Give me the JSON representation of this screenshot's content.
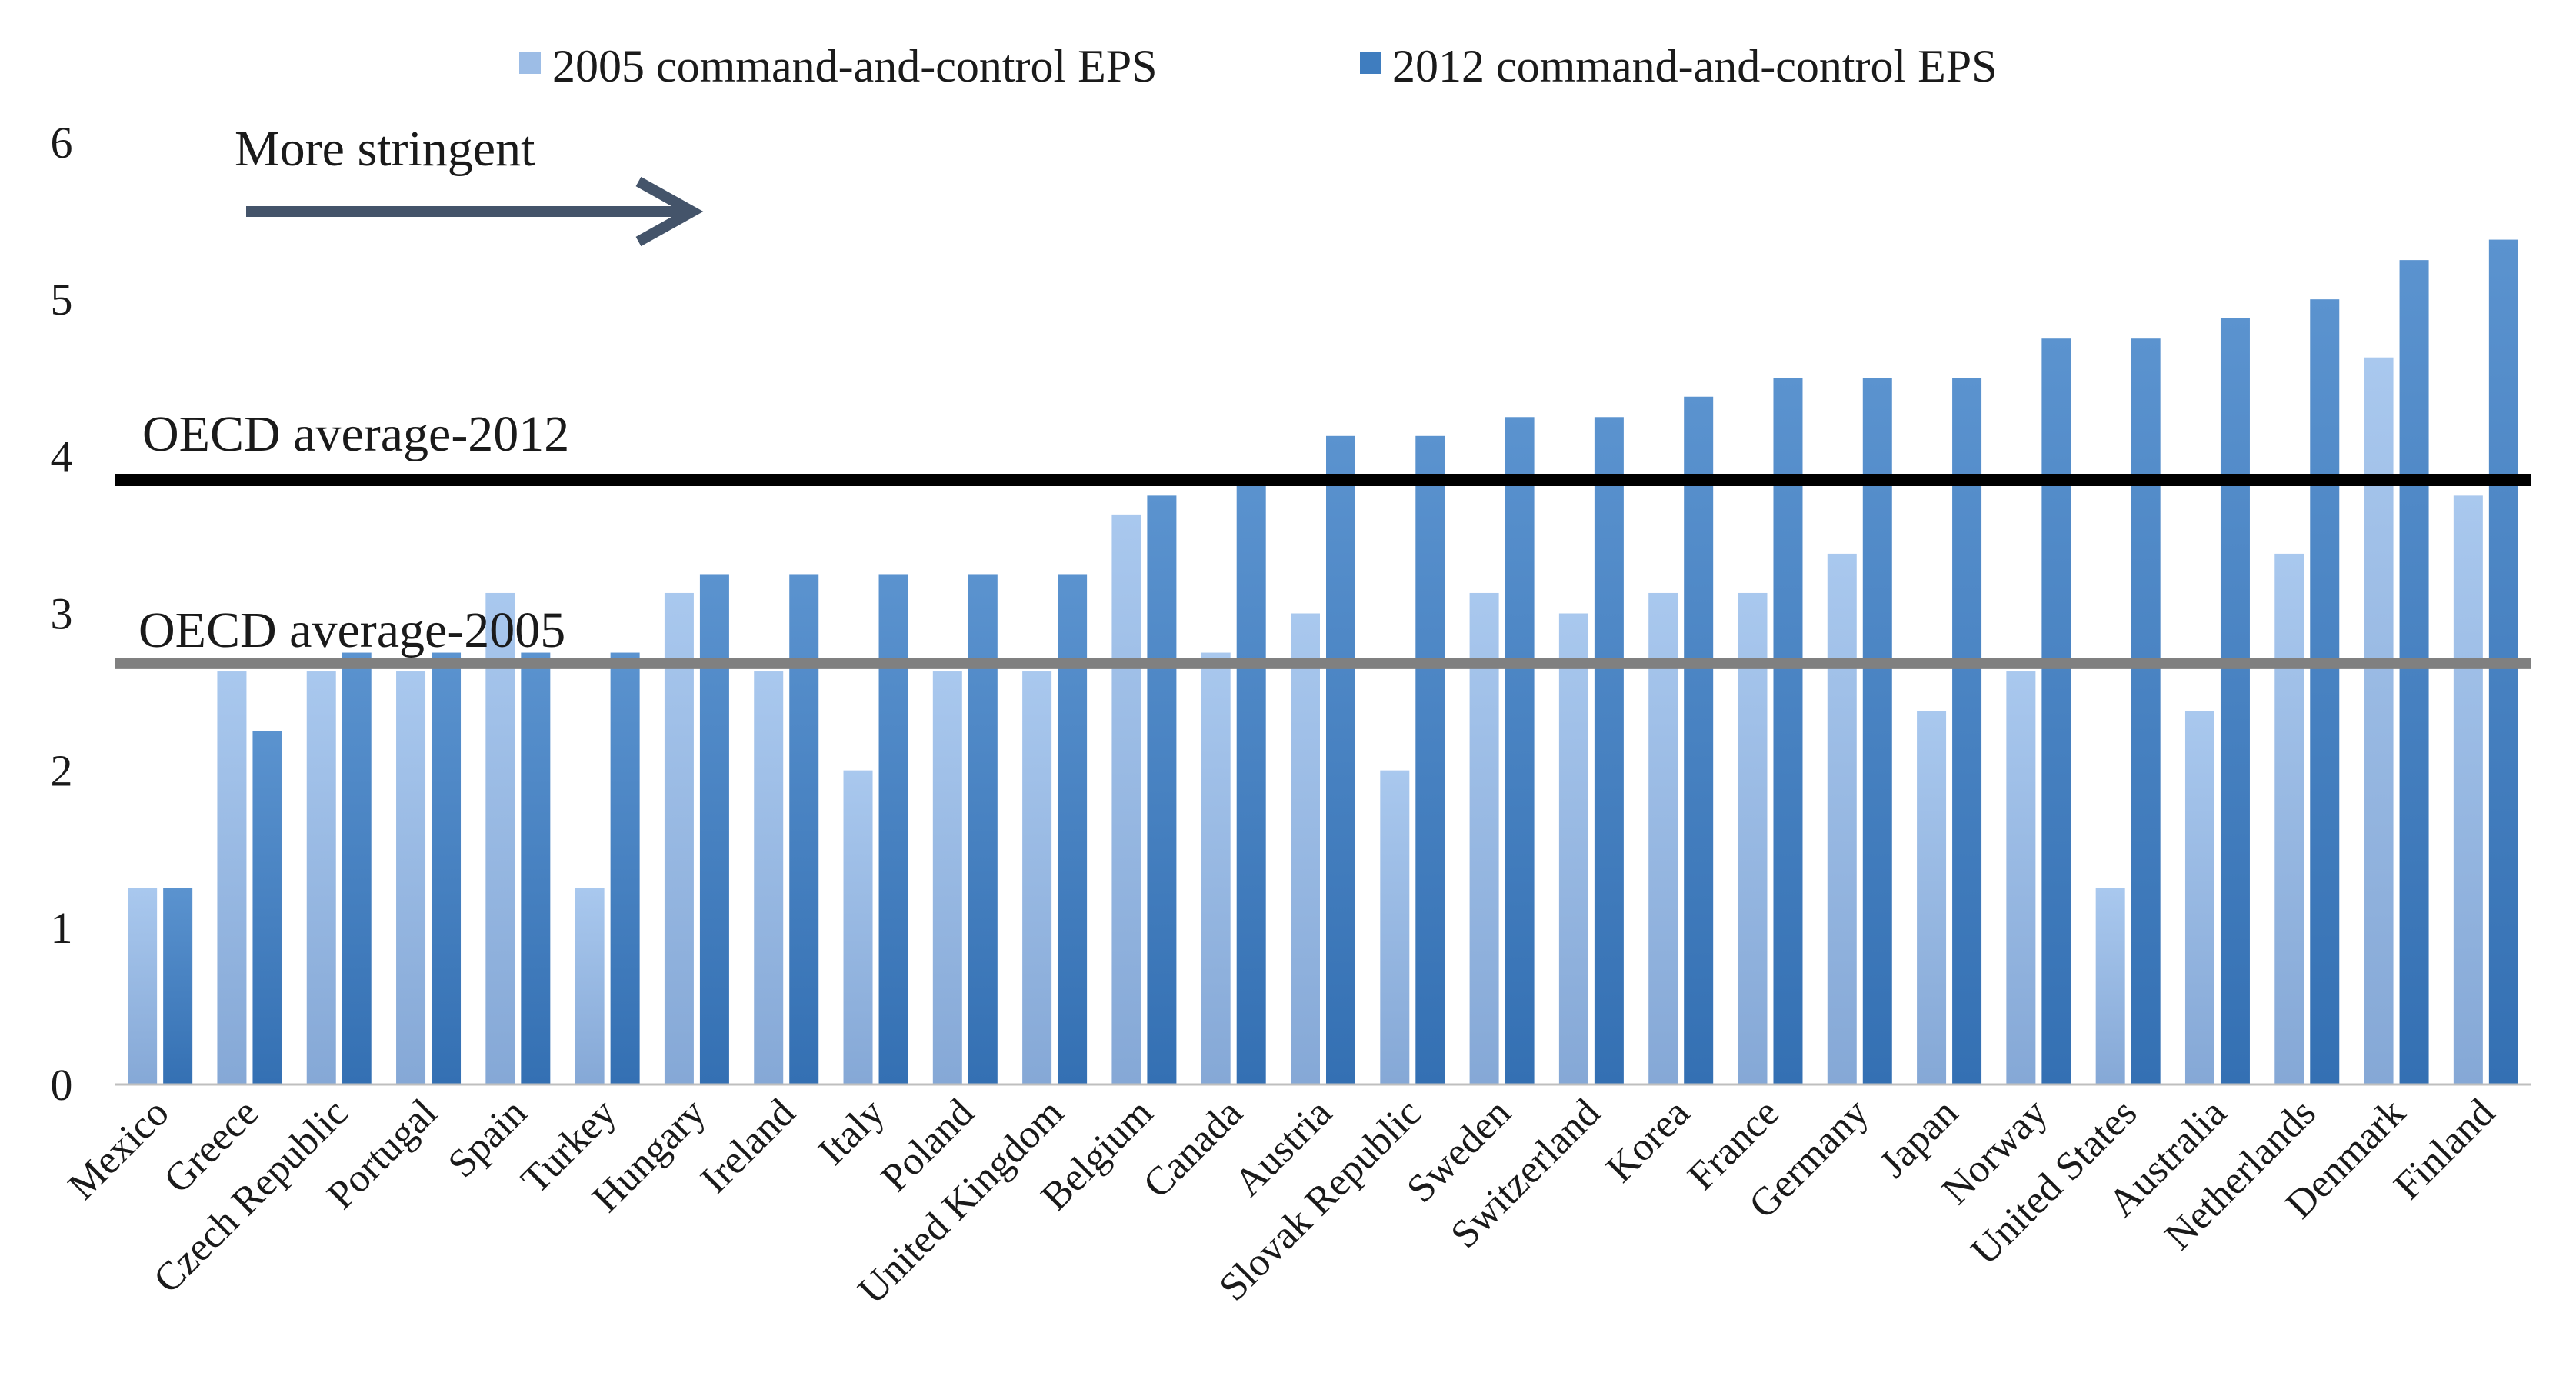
{
  "chart_data": {
    "type": "bar",
    "title": "",
    "xlabel": "",
    "ylabel": "",
    "ylim": [
      0,
      6
    ],
    "yticks": [
      0,
      1,
      2,
      3,
      4,
      5,
      6
    ],
    "grid": false,
    "legend_position": "top-center",
    "categories": [
      "Mexico",
      "Greece",
      "Czech Republic",
      "Portugal",
      "Spain",
      "Turkey",
      "Hungary",
      "Ireland",
      "Italy",
      "Poland",
      "United Kingdom",
      "Belgium",
      "Canada",
      "Austria",
      "Slovak Republic",
      "Sweden",
      "Switzerland",
      "Korea",
      "France",
      "Germany",
      "Japan",
      "Norway",
      "United States",
      "Australia",
      "Netherlands",
      "Denmark",
      "Finland"
    ],
    "series": [
      {
        "name": "2005 command-and-control EPS",
        "color": "#9dbde6",
        "values": [
          1.25,
          2.63,
          2.63,
          2.63,
          3.13,
          1.25,
          3.13,
          2.63,
          2.0,
          2.63,
          2.63,
          3.63,
          2.75,
          3.0,
          2.0,
          3.13,
          3.0,
          3.13,
          3.13,
          3.38,
          2.38,
          2.63,
          1.25,
          2.38,
          3.38,
          4.63,
          3.75
        ]
      },
      {
        "name": "2012 command-and-control EPS",
        "color": "#3f7dbf",
        "values": [
          1.25,
          2.25,
          2.75,
          2.75,
          2.75,
          2.75,
          3.25,
          3.25,
          3.25,
          3.25,
          3.25,
          3.75,
          3.88,
          4.13,
          4.13,
          4.25,
          4.25,
          4.38,
          4.5,
          4.5,
          4.5,
          4.75,
          4.75,
          4.88,
          5.0,
          5.25,
          5.38
        ]
      }
    ],
    "reference_lines": [
      {
        "label": "OECD average-2012",
        "value": 3.85,
        "color": "#000000"
      },
      {
        "label": "OECD average-2005",
        "value": 2.68,
        "color": "#808080"
      }
    ],
    "annotation": {
      "text": "More stringent",
      "arrow_color": "#44546a"
    }
  }
}
